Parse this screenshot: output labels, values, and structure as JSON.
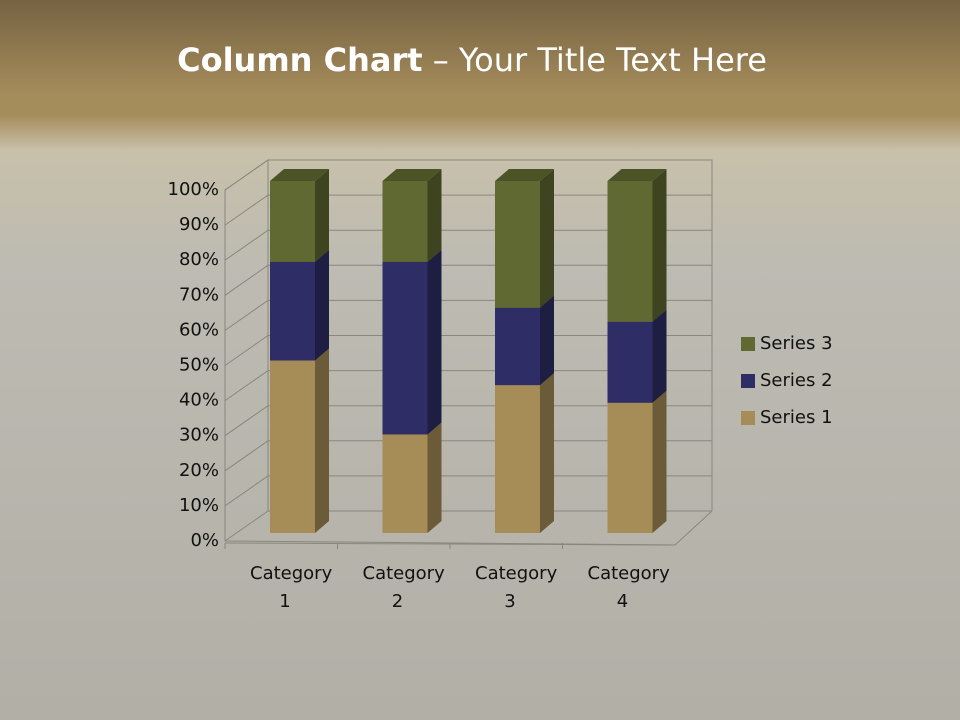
{
  "chart_data": {
    "type": "bar3d_stacked_percent",
    "title_bold": "Column Chart",
    "title_rest": "– Your Title Text Here",
    "categories": [
      "Category 1",
      "Category 2",
      "Category 3",
      "Category 4"
    ],
    "series": [
      {
        "name": "Series 1",
        "color": "#a68c57",
        "values": [
          49,
          28,
          42,
          37
        ]
      },
      {
        "name": "Series 2",
        "color": "#2e2d66",
        "values": [
          28,
          49,
          22,
          23
        ]
      },
      {
        "name": "Series 3",
        "color": "#5f6931",
        "values": [
          23,
          23,
          36,
          40
        ]
      }
    ],
    "ylim": [
      0,
      100
    ],
    "yticks": [
      {
        "value": 0,
        "label": "0%"
      },
      {
        "value": 10,
        "label": "10%"
      },
      {
        "value": 20,
        "label": "20%"
      },
      {
        "value": 30,
        "label": "30%"
      },
      {
        "value": 40,
        "label": "40%"
      },
      {
        "value": 50,
        "label": "50%"
      },
      {
        "value": 60,
        "label": "60%"
      },
      {
        "value": 70,
        "label": "70%"
      },
      {
        "value": 80,
        "label": "80%"
      },
      {
        "value": 90,
        "label": "90%"
      },
      {
        "value": 100,
        "label": "100%"
      }
    ],
    "grid": true,
    "legend": "right"
  }
}
